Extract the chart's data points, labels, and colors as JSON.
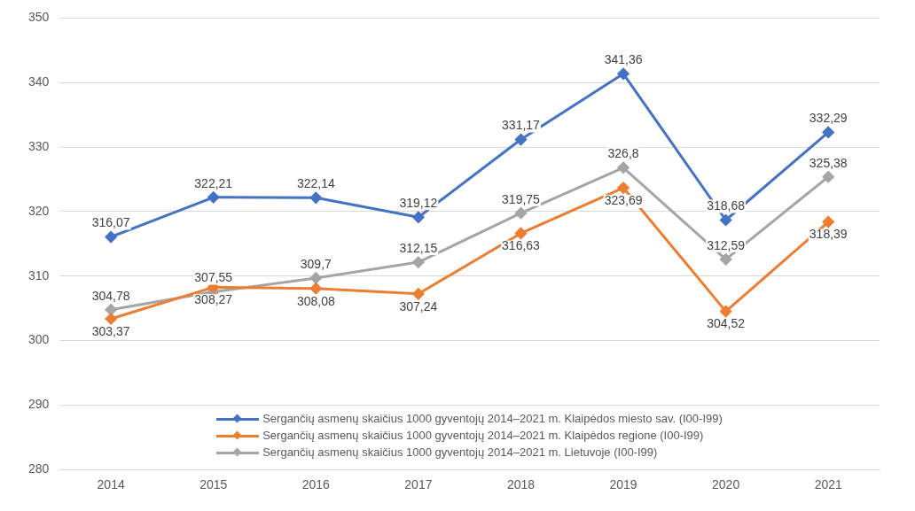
{
  "chart_data": {
    "type": "line",
    "categories": [
      "2014",
      "2015",
      "2016",
      "2017",
      "2018",
      "2019",
      "2020",
      "2021"
    ],
    "series": [
      {
        "name": "Sergančių asmenų skaičius 1000 gyventojų 2014–2021 m. Klaipėdos miesto sav. (I00-I99)",
        "color": "#4472c4",
        "values": [
          316.07,
          322.21,
          322.14,
          319.12,
          331.17,
          341.36,
          318.68,
          332.29
        ],
        "value_labels": [
          "316,07",
          "322,21",
          "322,14",
          "319,12",
          "331,17",
          "341,36",
          "318,68",
          "332,29"
        ]
      },
      {
        "name": "Sergančių asmenų skaičius 1000 gyventojų 2014–2021 m. Klaipėdos regione (I00-I99)",
        "color": "#ed7d31",
        "values": [
          303.37,
          308.27,
          308.08,
          307.24,
          316.63,
          323.69,
          304.52,
          318.39
        ],
        "value_labels": [
          "303,37",
          "308,27",
          "308,08",
          "307,24",
          "316,63",
          "323,69",
          "304,52",
          "318,39"
        ]
      },
      {
        "name": "Sergančių asmenų skaičius 1000 gyventojų 2014–2021 m. Lietuvoje (I00-I99)",
        "color": "#a5a5a5",
        "values": [
          304.78,
          307.55,
          309.7,
          312.15,
          319.75,
          326.8,
          312.59,
          325.38
        ],
        "value_labels": [
          "304,78",
          "307,55",
          "309,7",
          "312,15",
          "319,75",
          "326,8",
          "312,59",
          "325,38"
        ]
      }
    ],
    "ylim": [
      280,
      350
    ],
    "yticks": [
      280,
      290,
      300,
      310,
      320,
      330,
      340,
      350
    ],
    "grid": "y",
    "legend": "bottom",
    "marker": "diamond",
    "line_style": "solid"
  }
}
